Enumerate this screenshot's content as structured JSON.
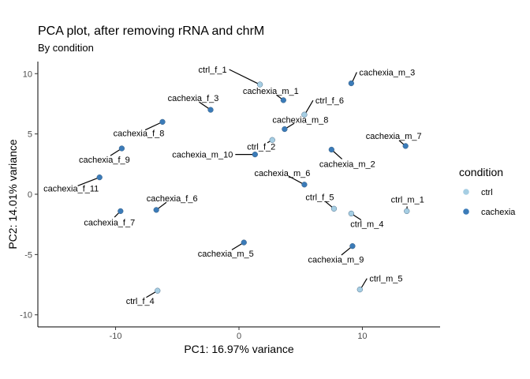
{
  "chart_data": {
    "type": "scatter",
    "title": "PCA plot, after removing rRNA and chrM",
    "subtitle": "By condition",
    "xlabel": "PC1: 16.97% variance",
    "ylabel": "PC2: 14.01% variance",
    "xlim": [
      -16.3,
      16.3
    ],
    "ylim": [
      -11.0,
      11.0
    ],
    "x_ticks": [
      -10,
      0,
      10
    ],
    "x_tick_labels": [
      "-10",
      "0",
      "10"
    ],
    "y_ticks": [
      -10,
      -5,
      0,
      5,
      10
    ],
    "y_tick_labels": [
      "-10",
      "-5",
      "0",
      "5",
      "10"
    ],
    "grid": false,
    "legend": {
      "title": "condition",
      "position": "right",
      "entries": [
        {
          "label": "ctrl",
          "color": "#a6cee3"
        },
        {
          "label": "cachexia",
          "color": "#3b7bb8"
        }
      ]
    },
    "colors": {
      "ctrl": "#a6cee3",
      "cachexia": "#3b7bb8"
    },
    "points": [
      {
        "label": "ctrl_f_1",
        "condition": "ctrl",
        "x": 1.7,
        "y": 9.1
      },
      {
        "label": "cachexia_m_3",
        "condition": "cachexia",
        "x": 9.1,
        "y": 9.2
      },
      {
        "label": "cachexia_m_1",
        "condition": "cachexia",
        "x": 3.6,
        "y": 7.8
      },
      {
        "label": "cachexia_f_3",
        "condition": "cachexia",
        "x": -2.3,
        "y": 7.0
      },
      {
        "label": "ctrl_f_6",
        "condition": "ctrl",
        "x": 5.3,
        "y": 6.6
      },
      {
        "label": "cachexia_f_8",
        "condition": "cachexia",
        "x": -6.2,
        "y": 6.0
      },
      {
        "label": "cachexia_m_8",
        "condition": "cachexia",
        "x": 3.7,
        "y": 5.4
      },
      {
        "label": "cachexia_m_7",
        "condition": "cachexia",
        "x": 13.5,
        "y": 4.0
      },
      {
        "label": "ctrl_f_2",
        "condition": "ctrl",
        "x": 2.7,
        "y": 4.5
      },
      {
        "label": "cachexia_f_9",
        "condition": "cachexia",
        "x": -9.5,
        "y": 3.8
      },
      {
        "label": "cachexia_m_2",
        "condition": "cachexia",
        "x": 7.5,
        "y": 3.7
      },
      {
        "label": "cachexia_m_10",
        "condition": "cachexia",
        "x": 1.3,
        "y": 3.3
      },
      {
        "label": "cachexia_f_11",
        "condition": "cachexia",
        "x": -11.3,
        "y": 1.4
      },
      {
        "label": "cachexia_m_6",
        "condition": "cachexia",
        "x": 5.3,
        "y": 0.8
      },
      {
        "label": "cachexia_f_6",
        "condition": "cachexia",
        "x": -6.7,
        "y": -1.3
      },
      {
        "label": "cachexia_f_7",
        "condition": "cachexia",
        "x": -9.6,
        "y": -1.4
      },
      {
        "label": "ctrl_f_5",
        "condition": "ctrl",
        "x": 7.7,
        "y": -1.2
      },
      {
        "label": "ctrl_m_1",
        "condition": "ctrl",
        "x": 13.6,
        "y": -1.4
      },
      {
        "label": "ctrl_m_4",
        "condition": "ctrl",
        "x": 9.1,
        "y": -1.6
      },
      {
        "label": "cachexia_m_5",
        "condition": "cachexia",
        "x": 0.4,
        "y": -4.0
      },
      {
        "label": "cachexia_m_9",
        "condition": "cachexia",
        "x": 9.2,
        "y": -4.3
      },
      {
        "label": "ctrl_m_5",
        "condition": "ctrl",
        "x": 9.8,
        "y": -7.9
      },
      {
        "label": "ctrl_f_4",
        "condition": "ctrl",
        "x": -6.6,
        "y": -8.0
      }
    ]
  }
}
